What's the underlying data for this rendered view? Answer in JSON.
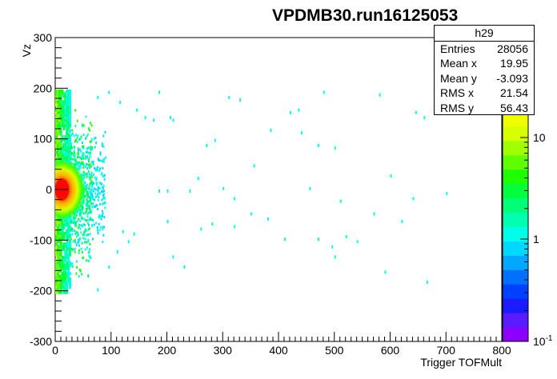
{
  "title": "VPDMB30.run16125053",
  "xlabel": "Trigger TOFMult",
  "ylabel": "Vz",
  "statbox": {
    "name": "h29",
    "rows": [
      {
        "label": "Entries",
        "value": "28056"
      },
      {
        "label": "Mean x",
        "value": "19.95"
      },
      {
        "label": "Mean y",
        "value": "-3.093"
      },
      {
        "label": "RMS x",
        "value": "21.54"
      },
      {
        "label": "RMS y",
        "value": "56.43"
      }
    ]
  },
  "chart_data": {
    "type": "heatmap",
    "title": "VPDMB30.run16125053",
    "xlabel": "Trigger TOFMult",
    "ylabel": "Vz",
    "xlim": [
      0,
      800
    ],
    "ylim": [
      -300,
      300
    ],
    "x_ticks": [
      "0",
      "100",
      "200",
      "300",
      "400",
      "500",
      "600",
      "700",
      "800"
    ],
    "y_ticks": [
      "-300",
      "-200",
      "-100",
      "0",
      "100",
      "200",
      "300"
    ],
    "z_scale": "log",
    "z_ticks": [
      "10^-1",
      "1",
      "10"
    ],
    "grid": false,
    "palette": [
      "#8c00ff",
      "#5a1bff",
      "#1a1cff",
      "#0040ff",
      "#0070ff",
      "#00a8ff",
      "#00d8ff",
      "#00ffe8",
      "#00ffb0",
      "#00ff78",
      "#00ff3c",
      "#1eff00",
      "#60ff00",
      "#a0ff00",
      "#d8ff00"
    ],
    "core": {
      "x_center": 15,
      "y_center": 0,
      "x_sigma": 12,
      "y_sigma": 18,
      "peak_color": "#ff0000"
    },
    "band": {
      "x_range": [
        0,
        25
      ],
      "y_range": [
        -200,
        200
      ]
    },
    "halo": {
      "x_range": [
        0,
        90
      ],
      "y_range": [
        -130,
        130
      ]
    },
    "sparse_points": [
      [
        75,
        185
      ],
      [
        95,
        195
      ],
      [
        115,
        175
      ],
      [
        145,
        160
      ],
      [
        160,
        145
      ],
      [
        185,
        195
      ],
      [
        205,
        145
      ],
      [
        175,
        140
      ],
      [
        210,
        140
      ],
      [
        270,
        90
      ],
      [
        285,
        100
      ],
      [
        310,
        185
      ],
      [
        330,
        180
      ],
      [
        385,
        120
      ],
      [
        420,
        155
      ],
      [
        435,
        160
      ],
      [
        440,
        115
      ],
      [
        470,
        90
      ],
      [
        480,
        195
      ],
      [
        500,
        85
      ],
      [
        580,
        190
      ],
      [
        645,
        155
      ],
      [
        660,
        145
      ],
      [
        600,
        30
      ],
      [
        255,
        25
      ],
      [
        240,
        0
      ],
      [
        200,
        0
      ],
      [
        185,
        0
      ],
      [
        300,
        5
      ],
      [
        320,
        -15
      ],
      [
        355,
        50
      ],
      [
        350,
        -45
      ],
      [
        410,
        -95
      ],
      [
        380,
        -55
      ],
      [
        470,
        -95
      ],
      [
        500,
        -130
      ],
      [
        495,
        -110
      ],
      [
        520,
        -90
      ],
      [
        590,
        -160
      ],
      [
        665,
        -180
      ],
      [
        620,
        -60
      ],
      [
        570,
        -45
      ],
      [
        640,
        -15
      ],
      [
        700,
        -5
      ],
      [
        120,
        -80
      ],
      [
        140,
        -85
      ],
      [
        200,
        -60
      ],
      [
        210,
        -130
      ],
      [
        230,
        -150
      ],
      [
        260,
        -75
      ],
      [
        280,
        -65
      ],
      [
        320,
        -70
      ],
      [
        110,
        -120
      ],
      [
        75,
        -195
      ],
      [
        95,
        -150
      ],
      [
        130,
        -100
      ],
      [
        455,
        5
      ],
      [
        510,
        -20
      ],
      [
        540,
        -100
      ]
    ]
  }
}
